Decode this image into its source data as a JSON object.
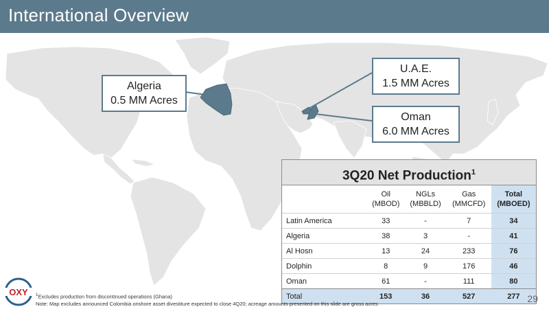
{
  "slide": {
    "title": "International Overview",
    "page_number": "29"
  },
  "map": {
    "highlight_color": "#5b7a8c",
    "land_color": "#e4e4e4",
    "callouts": {
      "algeria": {
        "name": "Algeria",
        "acres": "0.5 MM Acres"
      },
      "uae": {
        "name": "U.A.E.",
        "acres": "1.5 MM Acres"
      },
      "oman": {
        "name": "Oman",
        "acres": "6.0 MM Acres"
      }
    }
  },
  "production": {
    "title": "3Q20 Net Production",
    "title_sup": "1",
    "columns": [
      {
        "name": "Oil",
        "unit": "(MBOD)"
      },
      {
        "name": "NGLs",
        "unit": "(MBBLD)"
      },
      {
        "name": "Gas",
        "unit": "(MMCFD)"
      },
      {
        "name": "Total",
        "unit": "(MBOED)"
      }
    ],
    "rows": [
      {
        "label": "Latin America",
        "oil": "33",
        "ngls": "-",
        "gas": "7",
        "total": "34"
      },
      {
        "label": "Algeria",
        "oil": "38",
        "ngls": "3",
        "gas": "-",
        "total": "41"
      },
      {
        "label": "Al Hosn",
        "oil": "13",
        "ngls": "24",
        "gas": "233",
        "total": "76"
      },
      {
        "label": "Dolphin",
        "oil": "8",
        "ngls": "9",
        "gas": "176",
        "total": "46"
      },
      {
        "label": "Oman",
        "oil": "61",
        "ngls": "-",
        "gas": "111",
        "total": "80"
      }
    ],
    "total": {
      "label": "Total",
      "oil": "153",
      "ngls": "36",
      "gas": "527",
      "total": "277"
    }
  },
  "logo": {
    "text": "OXY",
    "icon": "oxy-logo-icon"
  },
  "footnotes": {
    "line1_sup": "1",
    "line1": "Excludes production from discontinued operations (Ghana)",
    "line2": "Note: Map excludes announced Colombia onshore asset divestiture expected to close 4Q20; acreage amounts presented on this slide are gross acres"
  }
}
